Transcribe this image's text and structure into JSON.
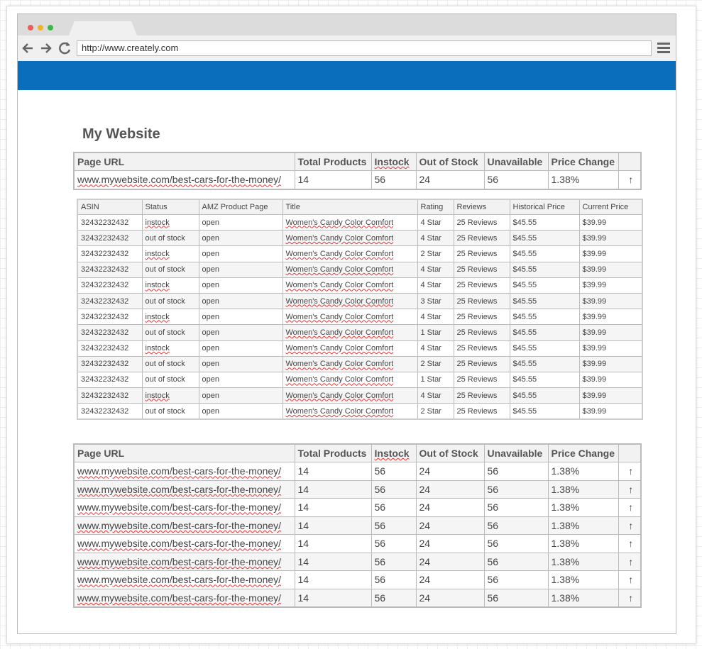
{
  "browser": {
    "url": "http://www.creately.com"
  },
  "page": {
    "title": "My Website"
  },
  "summary_table": {
    "header": [
      "Page URL",
      "Total Products",
      "Instock",
      "Out of Stock",
      "Unavailable",
      "Price Change"
    ],
    "rows": [
      [
        "www.mywebsite.com/best-cars-for-the-money/",
        "14",
        "56",
        "24",
        "56",
        "1.38%",
        "↑"
      ]
    ]
  },
  "product_table": {
    "header": [
      "ASIN",
      "Status",
      "AMZ Product Page",
      "Title",
      "Rating",
      "Reviews",
      "Historical Price",
      "Current Price"
    ],
    "rows": [
      [
        "32432232432",
        "instock",
        "open",
        "Women's Candy Color Comfort",
        "4 Star",
        "25 Reviews",
        "$45.55",
        "$39.99"
      ],
      [
        "32432232432",
        "out of stock",
        "open",
        "Women's Candy Color Comfort",
        "4 Star",
        "25 Reviews",
        "$45.55",
        "$39.99"
      ],
      [
        "32432232432",
        "instock",
        "open",
        "Women's Candy Color Comfort",
        "2 Star",
        "25 Reviews",
        "$45.55",
        "$39.99"
      ],
      [
        "32432232432",
        "out of stock",
        "open",
        "Women's Candy Color Comfort",
        "4 Star",
        "25 Reviews",
        "$45.55",
        "$39.99"
      ],
      [
        "32432232432",
        "instock",
        "open",
        "Women's Candy Color Comfort",
        "4 Star",
        "25 Reviews",
        "$45.55",
        "$39.99"
      ],
      [
        "32432232432",
        "out of stock",
        "open",
        "Women's Candy Color Comfort",
        "3 Star",
        "25 Reviews",
        "$45.55",
        "$39.99"
      ],
      [
        "32432232432",
        "instock",
        "open",
        "Women's Candy Color Comfort",
        "4 Star",
        "25 Reviews",
        "$45.55",
        "$39.99"
      ],
      [
        "32432232432",
        "out of stock",
        "open",
        "Women's Candy Color Comfort",
        "1 Star",
        "25 Reviews",
        "$45.55",
        "$39.99"
      ],
      [
        "32432232432",
        "instock",
        "open",
        "Women's Candy Color Comfort",
        "4 Star",
        "25 Reviews",
        "$45.55",
        "$39.99"
      ],
      [
        "32432232432",
        "out of stock",
        "open",
        "Women's Candy Color Comfort",
        "2 Star",
        "25 Reviews",
        "$45.55",
        "$39.99"
      ],
      [
        "32432232432",
        "out of stock",
        "open",
        "Women's Candy Color Comfort",
        "1 Star",
        "25 Reviews",
        "$45.55",
        "$39.99"
      ],
      [
        "32432232432",
        "instock",
        "open",
        "Women's Candy Color Comfort",
        "4 Star",
        "25 Reviews",
        "$45.55",
        "$39.99"
      ],
      [
        "32432232432",
        "out of stock",
        "open",
        "Women's Candy Color Comfort",
        "2 Star",
        "25 Reviews",
        "$45.55",
        "$39.99"
      ]
    ]
  },
  "pages_table": {
    "header": [
      "Page URL",
      "Total Products",
      "Instock",
      "Out of Stock",
      "Unavailable",
      "Price Change"
    ],
    "rows": [
      [
        "www.mywebsite.com/best-cars-for-the-money/",
        "14",
        "56",
        "24",
        "56",
        "1.38%",
        "↑"
      ],
      [
        "www.mywebsite.com/best-cars-for-the-money/",
        "14",
        "56",
        "24",
        "56",
        "1.38%",
        "↑"
      ],
      [
        "www.mywebsite.com/best-cars-for-the-money/",
        "14",
        "56",
        "24",
        "56",
        "1.38%",
        "↑"
      ],
      [
        "www.mywebsite.com/best-cars-for-the-money/",
        "14",
        "56",
        "24",
        "56",
        "1.38%",
        "↑"
      ],
      [
        "www.mywebsite.com/best-cars-for-the-money/",
        "14",
        "56",
        "24",
        "56",
        "1.38%",
        "↑"
      ],
      [
        "www.mywebsite.com/best-cars-for-the-money/",
        "14",
        "56",
        "24",
        "56",
        "1.38%",
        "↑"
      ],
      [
        "www.mywebsite.com/best-cars-for-the-money/",
        "14",
        "56",
        "24",
        "56",
        "1.38%",
        "↑"
      ],
      [
        "www.mywebsite.com/best-cars-for-the-money/",
        "14",
        "56",
        "24",
        "56",
        "1.38%",
        "↑"
      ]
    ]
  }
}
